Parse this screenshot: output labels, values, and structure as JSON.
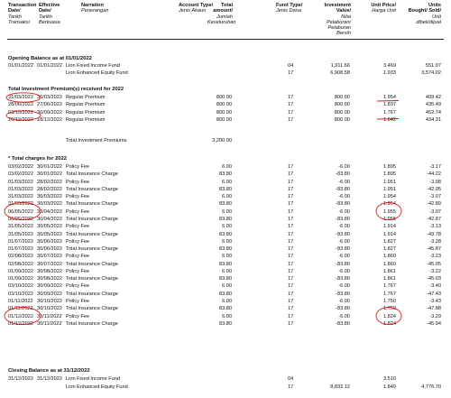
{
  "headers": {
    "transaction_date": [
      "Transaction",
      "Date/",
      "Tarikh",
      "Transaksi"
    ],
    "effective_date": [
      "Effective",
      "Date/",
      "Tarikh",
      "Berkuasa"
    ],
    "narration": [
      "Narration",
      "Penerangan"
    ],
    "account_type": [
      "Account Type/",
      "Jenis Akaun"
    ],
    "total_amount": [
      "Total",
      "amount/",
      "Jumlah",
      "Keseluruhan"
    ],
    "fund_type": [
      "Fund Type/",
      "Jenis Dana"
    ],
    "investment_value": [
      "Investment",
      "Value/",
      "Nilai",
      "Pelaburan/",
      "Pelaburan",
      "Bersih"
    ],
    "unit_price": [
      "Unit Price/",
      "Harga Unit"
    ],
    "units": [
      "Units",
      "Bought/ Sold/",
      "Unit",
      "dibeli/dijual"
    ]
  },
  "opening": {
    "title": "Opening Balance as at 01/01/2022",
    "rows": [
      {
        "td": "01/01/2022",
        "ed": "01/01/2022",
        "narration": "Lion Fixed Income Fund",
        "total": "",
        "fund": "04",
        "iv": "1,911.66",
        "up": "3.469",
        "units": "551.07"
      },
      {
        "td": "",
        "ed": "",
        "narration": "Lion Enhanced Equity Fund",
        "total": "",
        "fund": "17",
        "iv": "6,908.58",
        "up": "1.933",
        "units": "3,574.02"
      }
    ]
  },
  "premiums": {
    "title": "Total Investment Premium(s) received for 2022",
    "rows": [
      {
        "td": "31/03/2022",
        "ed": "30/03/2022",
        "narration": "Regular Premium",
        "total": "800.00",
        "fund": "17",
        "iv": "800.00",
        "up": "1.954",
        "units": "409.42"
      },
      {
        "td": "28/06/2022",
        "ed": "27/06/2022",
        "narration": "Regular Premium",
        "total": "800.00",
        "fund": "17",
        "iv": "800.00",
        "up": "1.837",
        "units": "435.49"
      },
      {
        "td": "03/10/2022",
        "ed": "30/09/2022",
        "narration": "Regular Premium",
        "total": "800.00",
        "fund": "17",
        "iv": "800.00",
        "up": "1.767",
        "units": "452.74"
      },
      {
        "td": "20/12/2022",
        "ed": "18/12/2022",
        "narration": "Regular Premium",
        "total": "800.00",
        "fund": "17",
        "iv": "800.00",
        "up": "1.842",
        "units": "434.31"
      }
    ],
    "total_label": "Total Investment Premiums",
    "total_value": "3,200.00"
  },
  "charges": {
    "title": "* Total charges for 2022",
    "rows": [
      {
        "td": "03/02/2022",
        "ed": "30/01/2022",
        "narration": "Policy Fee",
        "total": "6.00",
        "fund": "17",
        "iv": "-6.00",
        "up": "1.895",
        "units": "-3.17"
      },
      {
        "td": "03/02/2022",
        "ed": "30/01/2022",
        "narration": "Total Insurance Charge",
        "total": "83.80",
        "fund": "17",
        "iv": "-83.80",
        "up": "1.895",
        "units": "-44.22"
      },
      {
        "td": "01/03/2022",
        "ed": "28/02/2022",
        "narration": "Policy Fee",
        "total": "6.00",
        "fund": "17",
        "iv": "-6.00",
        "up": "1.951",
        "units": "-3.08"
      },
      {
        "td": "01/03/2022",
        "ed": "28/02/2022",
        "narration": "Total Insurance Charge",
        "total": "83.80",
        "fund": "17",
        "iv": "-83.80",
        "up": "1.951",
        "units": "-42.95"
      },
      {
        "td": "31/03/2022",
        "ed": "30/03/2022",
        "narration": "Policy Fee",
        "total": "6.00",
        "fund": "17",
        "iv": "-6.00",
        "up": "1.954",
        "units": "-3.07"
      },
      {
        "td": "31/03/2022",
        "ed": "30/03/2022",
        "narration": "Total Insurance Charge",
        "total": "83.80",
        "fund": "17",
        "iv": "-83.80",
        "up": "1.954",
        "units": "-42.89"
      },
      {
        "td": "06/05/2022",
        "ed": "30/04/2022",
        "narration": "Policy Fee",
        "total": "6.00",
        "fund": "17",
        "iv": "-6.00",
        "up": "1.955",
        "units": "-3.07"
      },
      {
        "td": "06/05/2022",
        "ed": "30/04/2022",
        "narration": "Total Insurance Charge",
        "total": "83.80",
        "fund": "17",
        "iv": "-83.80",
        "up": "1.955",
        "units": "-42.87"
      },
      {
        "td": "31/05/2022",
        "ed": "30/05/2022",
        "narration": "Policy Fee",
        "total": "6.00",
        "fund": "17",
        "iv": "-6.00",
        "up": "1.914",
        "units": "-3.13"
      },
      {
        "td": "31/05/2022",
        "ed": "30/05/2022",
        "narration": "Total Insurance Charge",
        "total": "83.80",
        "fund": "17",
        "iv": "-83.80",
        "up": "1.914",
        "units": "-43.78"
      },
      {
        "td": "01/07/2022",
        "ed": "30/06/2022",
        "narration": "Policy Fee",
        "total": "6.00",
        "fund": "17",
        "iv": "-6.00",
        "up": "1.827",
        "units": "-3.28"
      },
      {
        "td": "01/07/2022",
        "ed": "30/06/2022",
        "narration": "Total Insurance Charge",
        "total": "83.80",
        "fund": "17",
        "iv": "-83.80",
        "up": "1.827",
        "units": "-45.87"
      },
      {
        "td": "02/08/2022",
        "ed": "30/07/2022",
        "narration": "Policy Fee",
        "total": "6.00",
        "fund": "17",
        "iv": "-6.00",
        "up": "1.860",
        "units": "-3.23"
      },
      {
        "td": "02/08/2022",
        "ed": "30/07/2022",
        "narration": "Total Insurance Charge",
        "total": "83.80",
        "fund": "17",
        "iv": "-83.80",
        "up": "1.860",
        "units": "-45.05"
      },
      {
        "td": "01/09/2022",
        "ed": "30/08/2022",
        "narration": "Policy Fee",
        "total": "6.00",
        "fund": "17",
        "iv": "-6.00",
        "up": "1.861",
        "units": "-3.22"
      },
      {
        "td": "01/09/2022",
        "ed": "30/08/2022",
        "narration": "Total Insurance Charge",
        "total": "83.80",
        "fund": "17",
        "iv": "-83.80",
        "up": "1.861",
        "units": "-45.03"
      },
      {
        "td": "03/10/2022",
        "ed": "30/09/2022",
        "narration": "Policy Fee",
        "total": "6.00",
        "fund": "17",
        "iv": "-6.00",
        "up": "1.767",
        "units": "-3.40"
      },
      {
        "td": "03/10/2022",
        "ed": "30/09/2022",
        "narration": "Total Insurance Charge",
        "total": "83.80",
        "fund": "17",
        "iv": "-83.80",
        "up": "1.767",
        "units": "-47.43"
      },
      {
        "td": "01/11/2022",
        "ed": "30/10/2022",
        "narration": "Policy Fee",
        "total": "6.00",
        "fund": "17",
        "iv": "-6.00",
        "up": "1.750",
        "units": "-3.43"
      },
      {
        "td": "01/11/2022",
        "ed": "30/10/2022",
        "narration": "Total Insurance Charge",
        "total": "83.80",
        "fund": "17",
        "iv": "-83.80",
        "up": "1.750",
        "units": "-47.88"
      },
      {
        "td": "01/12/2022",
        "ed": "30/11/2022",
        "narration": "Policy Fee",
        "total": "6.00",
        "fund": "17",
        "iv": "-6.00",
        "up": "1.824",
        "units": "-3.29"
      },
      {
        "td": "01/12/2022",
        "ed": "30/11/2022",
        "narration": "Total Insurance Charge",
        "total": "83.80",
        "fund": "17",
        "iv": "-83.80",
        "up": "1.824",
        "units": "-45.94"
      }
    ]
  },
  "closing": {
    "title": "Closing Balance as at 31/12/2022",
    "rows": [
      {
        "td": "31/12/2022",
        "ed": "31/12/2022",
        "narration": "Lion Fixed Income Fund",
        "total": "",
        "fund": "04",
        "iv": "",
        "up": "3.510",
        "units": ""
      },
      {
        "td": "",
        "ed": "",
        "narration": "Lion Enhanced Equity Fund",
        "total": "",
        "fund": "17",
        "iv": "8,832.12",
        "up": "1.849",
        "units": "4,776.70"
      }
    ]
  },
  "annotation_color": "#d81b1b"
}
